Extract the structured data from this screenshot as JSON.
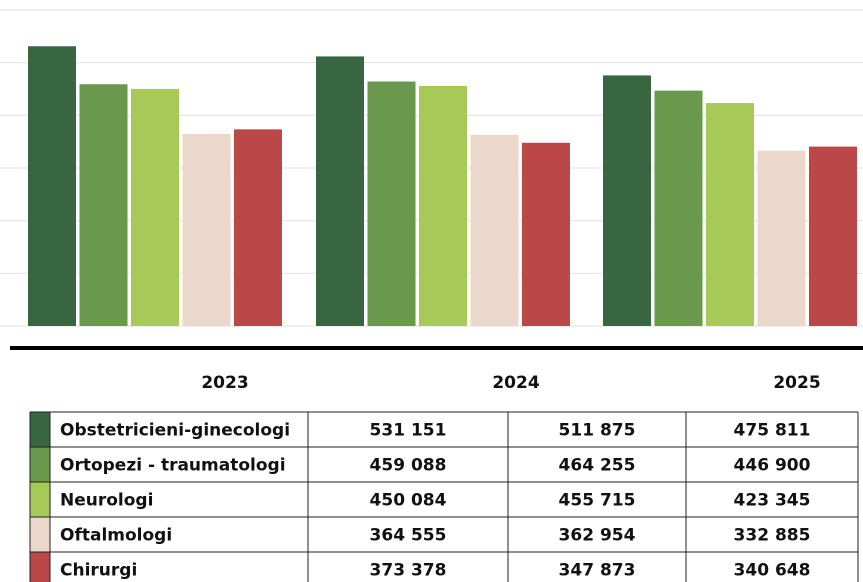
{
  "chart_data": {
    "type": "bar",
    "categories": [
      "2023",
      "2024",
      "2025"
    ],
    "series": [
      {
        "name": "Obstetricieni-ginecologi",
        "color": "#386641",
        "values": [
          531151,
          511875,
          475811
        ],
        "value_labels": [
          "531 151",
          "511 875",
          "475 811"
        ]
      },
      {
        "name": "Ortopezi - traumatologi",
        "color": "#6a994e",
        "values": [
          459088,
          464255,
          446900
        ],
        "value_labels": [
          "459 088",
          "464 255",
          "446 900"
        ]
      },
      {
        "name": "Neurologi",
        "color": "#a7c957",
        "values": [
          450084,
          455715,
          423345
        ],
        "value_labels": [
          "450 084",
          "455 715",
          "423 345"
        ]
      },
      {
        "name": "Oftalmologi",
        "color": "#ecd8ca",
        "values": [
          364555,
          362954,
          332885
        ],
        "value_labels": [
          "364 555",
          "362 954",
          "332 885"
        ]
      },
      {
        "name": "Chirurgi",
        "color": "#bc4749",
        "values": [
          373378,
          347873,
          340648
        ],
        "value_labels": [
          "373 378",
          "347 873",
          "340 648"
        ]
      }
    ],
    "ylim": [
      0,
      600000
    ],
    "yticks": [
      0,
      100000,
      200000,
      300000,
      400000,
      500000,
      600000
    ],
    "grid": true
  }
}
